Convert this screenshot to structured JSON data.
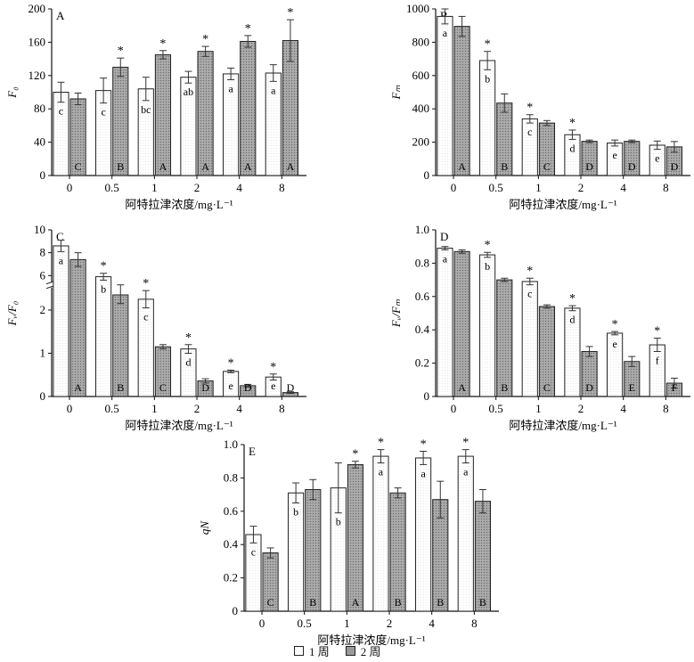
{
  "colors": {
    "week1_fill": "#ffffff",
    "week2_fill": "#9e9e9e",
    "axis": "#111111",
    "error_bar": "#333333"
  },
  "x_axis_label": "阿特拉津浓度/mg·L⁻¹",
  "legend": {
    "series1": "1 周",
    "series2": "2 周"
  },
  "chart_data": [
    {
      "type": "bar",
      "panel": "A",
      "ylabel": "F₀",
      "ylim": [
        0,
        200
      ],
      "yticks": [
        "0",
        "40",
        "80",
        "120",
        "160",
        "200"
      ],
      "categories": [
        "0",
        "0.5",
        "1",
        "2",
        "4",
        "8"
      ],
      "series": [
        {
          "name": "1 周",
          "values": [
            100,
            102,
            104,
            118,
            122,
            123
          ],
          "errors": [
            12,
            15,
            14,
            7,
            7,
            10
          ],
          "labels": [
            "c",
            "c",
            "bc",
            "ab",
            "a",
            "a"
          ]
        },
        {
          "name": "2 周",
          "values": [
            92,
            130,
            145,
            149,
            161,
            162
          ],
          "errors": [
            7,
            11,
            5,
            6,
            7,
            25
          ],
          "labels": [
            "C",
            "B",
            "A",
            "A",
            "A",
            "A"
          ]
        }
      ],
      "significance": [
        "",
        "*",
        "*",
        "*",
        "*",
        "*"
      ]
    },
    {
      "type": "bar",
      "panel": "B",
      "ylabel": "Fₘ",
      "ylim": [
        0,
        1000
      ],
      "yticks": [
        "0",
        "200",
        "400",
        "600",
        "800",
        "1000"
      ],
      "categories": [
        "0",
        "0.5",
        "1",
        "2",
        "4",
        "8"
      ],
      "series": [
        {
          "name": "1 周",
          "values": [
            955,
            690,
            340,
            245,
            195,
            182
          ],
          "errors": [
            45,
            55,
            25,
            28,
            18,
            25
          ],
          "labels": [
            "a",
            "b",
            "c",
            "d",
            "e",
            "e"
          ]
        },
        {
          "name": "2 周",
          "values": [
            895,
            435,
            315,
            205,
            205,
            172
          ],
          "errors": [
            60,
            55,
            15,
            8,
            8,
            32
          ],
          "labels": [
            "A",
            "B",
            "C",
            "D",
            "D",
            "D"
          ]
        }
      ],
      "significance": [
        "",
        "*",
        "*",
        "*",
        "",
        ""
      ]
    },
    {
      "type": "bar",
      "panel": "C",
      "ylabel": "Fᵥ/F₀",
      "ylim": [
        0,
        10
      ],
      "axis_break": [
        2.5,
        5.5
      ],
      "yticks": [
        "0",
        "1",
        "2",
        "6",
        "8",
        "10"
      ],
      "categories": [
        "0",
        "0.5",
        "1",
        "2",
        "4",
        "8"
      ],
      "series": [
        {
          "name": "1 周",
          "values": [
            8.6,
            5.9,
            2.25,
            1.1,
            0.58,
            0.45
          ],
          "errors": [
            0.5,
            0.3,
            0.2,
            0.1,
            0.03,
            0.07
          ],
          "labels": [
            "a",
            "b",
            "c",
            "d",
            "e",
            "e"
          ]
        },
        {
          "name": "2 周",
          "values": [
            7.4,
            2.35,
            1.15,
            0.36,
            0.25,
            0.09
          ],
          "errors": [
            0.6,
            0.2,
            0.05,
            0.05,
            0.03,
            0.02
          ],
          "labels": [
            "A",
            "B",
            "C",
            "D",
            "D",
            "D"
          ]
        }
      ],
      "significance": [
        "",
        "*",
        "*",
        "*",
        "*",
        "*"
      ]
    },
    {
      "type": "bar",
      "panel": "D",
      "ylabel": "Fᵥ/Fₘ",
      "ylim": [
        0,
        1.0
      ],
      "yticks": [
        "0",
        "0.2",
        "0.4",
        "0.6",
        "0.8",
        "1.0"
      ],
      "categories": [
        "0",
        "0.5",
        "1",
        "2",
        "4",
        "8"
      ],
      "series": [
        {
          "name": "1 周",
          "values": [
            0.89,
            0.85,
            0.69,
            0.53,
            0.38,
            0.31
          ],
          "errors": [
            0.01,
            0.015,
            0.02,
            0.015,
            0.01,
            0.04
          ],
          "labels": [
            "a",
            "b",
            "c",
            "d",
            "e",
            "f"
          ]
        },
        {
          "name": "2 周",
          "values": [
            0.87,
            0.7,
            0.54,
            0.27,
            0.21,
            0.08
          ],
          "errors": [
            0.01,
            0.01,
            0.01,
            0.03,
            0.03,
            0.03
          ],
          "labels": [
            "A",
            "B",
            "C",
            "D",
            "E",
            "F"
          ]
        }
      ],
      "significance": [
        "",
        "*",
        "*",
        "*",
        "*",
        "*"
      ]
    },
    {
      "type": "bar",
      "panel": "E",
      "ylabel": "qN",
      "ylim": [
        0,
        1.0
      ],
      "yticks": [
        "0",
        "0.2",
        "0.4",
        "0.6",
        "0.8",
        "1.0"
      ],
      "categories": [
        "0",
        "0.5",
        "1",
        "2",
        "4",
        "8"
      ],
      "series": [
        {
          "name": "1 周",
          "values": [
            0.46,
            0.71,
            0.74,
            0.93,
            0.92,
            0.93
          ],
          "errors": [
            0.05,
            0.06,
            0.15,
            0.04,
            0.04,
            0.04
          ],
          "labels": [
            "c",
            "b",
            "b",
            "a",
            "a",
            "a"
          ]
        },
        {
          "name": "2 周",
          "values": [
            0.35,
            0.73,
            0.88,
            0.71,
            0.67,
            0.66
          ],
          "errors": [
            0.03,
            0.06,
            0.02,
            0.03,
            0.11,
            0.07
          ],
          "labels": [
            "C",
            "B",
            "A",
            "B",
            "B",
            "B"
          ]
        }
      ],
      "significance": [
        "",
        "",
        "*",
        "*",
        "*",
        "*"
      ]
    }
  ]
}
